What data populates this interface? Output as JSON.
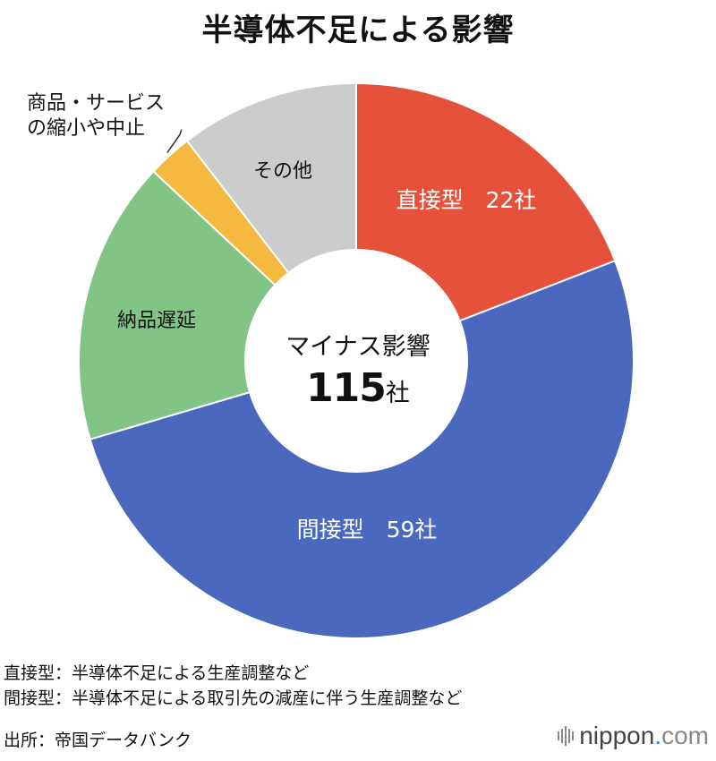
{
  "chart_data": {
    "type": "pie",
    "title": "半導体不足による影響",
    "center_label": "マイナス影響",
    "total_value": "115",
    "total_unit": "社",
    "slices": [
      {
        "category": "直接型",
        "value": 22,
        "unit": "社",
        "color": "#e5513a",
        "label": "直接型　22社"
      },
      {
        "category": "間接型",
        "value": 59,
        "unit": "社",
        "color": "#4a68bd",
        "label": "間接型　59社"
      },
      {
        "category": "納品遅延",
        "value": 19,
        "color": "#81c485",
        "label": "納品遅延"
      },
      {
        "category": "商品・サービスの縮小や中止",
        "value": 3,
        "color": "#f4b93e",
        "label_lines": [
          "商品・サービス",
          "の縮小や中止"
        ]
      },
      {
        "category": "その他",
        "value": 12,
        "color": "#cccccc",
        "label": "その他"
      }
    ]
  },
  "notes": [
    "直接型：半導体不足による生産調整など",
    "間接型：半導体不足による取引先の減産に伴う生産調整など"
  ],
  "source": "出所：帝国データバンク",
  "logo": {
    "name": "nippon",
    "dot": ".",
    "domain": "com"
  }
}
